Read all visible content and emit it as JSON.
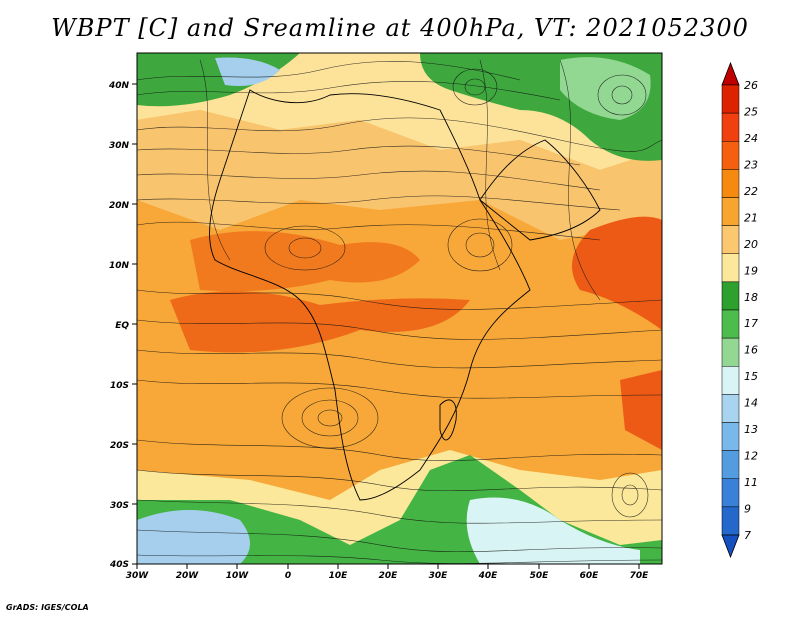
{
  "title": "WBPT [C] and Sreamline at 400hPa, VT: 2021052300",
  "credit": "GrADS: IGES/COLA",
  "map": {
    "lat_labels": [
      "40N",
      "30N",
      "20N",
      "10N",
      "EQ",
      "10S",
      "20S",
      "30S",
      "40S"
    ],
    "lon_labels": [
      "30W",
      "20W",
      "10W",
      "0",
      "10E",
      "20E",
      "30E",
      "40E",
      "50E",
      "60E",
      "70E"
    ]
  },
  "colorbar": {
    "labels": [
      "26",
      "25",
      "24",
      "23",
      "22",
      "21",
      "20",
      "19",
      "18",
      "17",
      "16",
      "15",
      "14",
      "13",
      "12",
      "11",
      "9",
      "7"
    ],
    "colors": [
      "#c00000",
      "#dd2200",
      "#f04010",
      "#f46010",
      "#f68a10",
      "#f8a530",
      "#fbc870",
      "#fce89a",
      "#2ea02e",
      "#4cbd4c",
      "#92d892",
      "#d8f4f4",
      "#a8d4f0",
      "#78b8ea",
      "#549ce0",
      "#3880d8",
      "#2468cc",
      "#1450c0"
    ]
  }
}
